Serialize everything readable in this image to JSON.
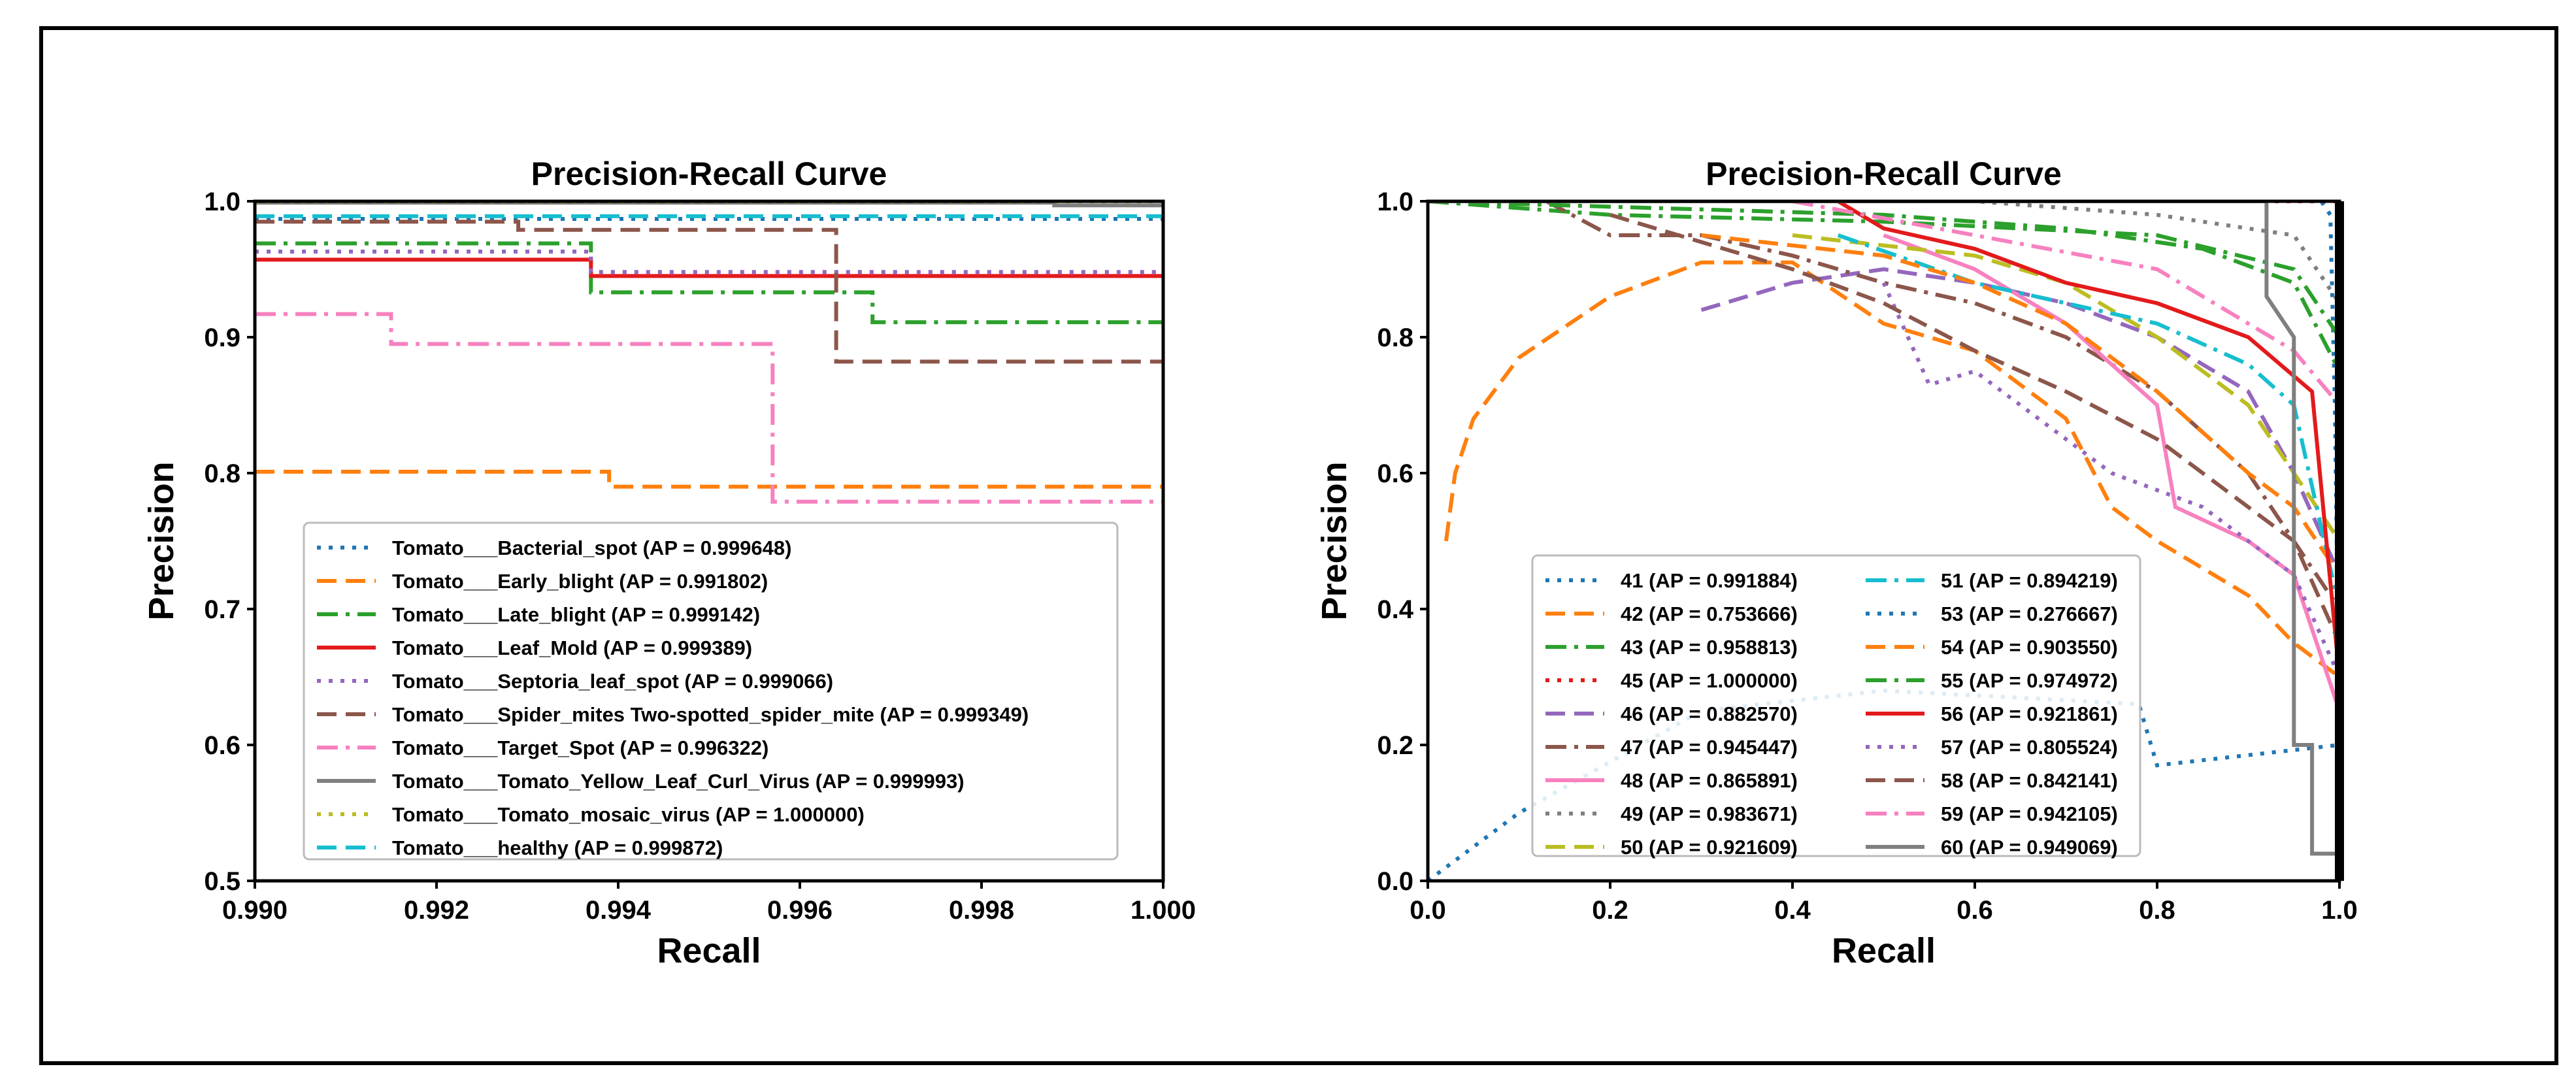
{
  "chart_data": [
    {
      "type": "line",
      "title": "Precision-Recall Curve",
      "xlabel": "Recall",
      "ylabel": "Precision",
      "xlim": [
        0.99,
        1.0
      ],
      "ylim": [
        0.5,
        1.0
      ],
      "xticks": [
        "0.990",
        "0.992",
        "0.994",
        "0.996",
        "0.998",
        "1.000"
      ],
      "yticks": [
        "0.5",
        "0.6",
        "0.7",
        "0.8",
        "0.9",
        "1.0"
      ],
      "legend_position": "lower-left",
      "series": [
        {
          "name": "Tomato___Bacterial_spot (AP = 0.999648)",
          "color": "#1f77b4",
          "style": "dotted",
          "points": [
            [
              0.99,
              0.987
            ],
            [
              1.0,
              0.987
            ]
          ]
        },
        {
          "name": "Tomato___Early_blight (AP = 0.991802)",
          "color": "#ff7f0e",
          "style": "dashed",
          "points": [
            [
              0.99,
              0.801
            ],
            [
              0.9939,
              0.801
            ],
            [
              0.9939,
              0.79
            ],
            [
              1.0,
              0.79
            ]
          ]
        },
        {
          "name": "Tomato___Late_blight (AP = 0.999142)",
          "color": "#2ca02c",
          "style": "dashdot",
          "points": [
            [
              0.99,
              0.969
            ],
            [
              0.9937,
              0.969
            ],
            [
              0.9937,
              0.933
            ],
            [
              0.9968,
              0.933
            ],
            [
              0.9968,
              0.911
            ],
            [
              1.0,
              0.911
            ]
          ]
        },
        {
          "name": "Tomato___Leaf_Mold (AP = 0.999389)",
          "color": "#e31a1c",
          "style": "solid",
          "points": [
            [
              0.99,
              0.957
            ],
            [
              0.9937,
              0.957
            ],
            [
              0.9937,
              0.945
            ],
            [
              1.0,
              0.945
            ]
          ]
        },
        {
          "name": "Tomato___Septoria_leaf_spot (AP = 0.999066)",
          "color": "#9467bd",
          "style": "dotted",
          "points": [
            [
              0.99,
              0.963
            ],
            [
              0.9937,
              0.963
            ],
            [
              0.9937,
              0.948
            ],
            [
              1.0,
              0.948
            ]
          ]
        },
        {
          "name": "Tomato___Spider_mites Two-spotted_spider_mite (AP = 0.999349)",
          "color": "#8c564b",
          "style": "dashed",
          "points": [
            [
              0.99,
              0.985
            ],
            [
              0.9929,
              0.985
            ],
            [
              0.9929,
              0.979
            ],
            [
              0.9964,
              0.979
            ],
            [
              0.9964,
              0.882
            ],
            [
              1.0,
              0.882
            ]
          ]
        },
        {
          "name": "Tomato___Target_Spot (AP = 0.996322)",
          "color": "#f781bf",
          "style": "dashdot",
          "points": [
            [
              0.99,
              0.917
            ],
            [
              0.9915,
              0.917
            ],
            [
              0.9915,
              0.895
            ],
            [
              0.9957,
              0.895
            ],
            [
              0.9957,
              0.779
            ],
            [
              1.0,
              0.779
            ]
          ]
        },
        {
          "name": "Tomato___Tomato_Yellow_Leaf_Curl_Virus (AP = 0.999993)",
          "color": "#7f7f7f",
          "style": "solid",
          "points": [
            [
              0.99,
              0.999
            ],
            [
              0.9988,
              0.999
            ],
            [
              0.9988,
              0.997
            ],
            [
              1.0,
              0.997
            ]
          ]
        },
        {
          "name": "Tomato___Tomato_mosaic_virus (AP = 1.000000)",
          "color": "#bcbd22",
          "style": "dotted",
          "points": [
            [
              0.99,
              1.0
            ],
            [
              1.0,
              1.0
            ]
          ]
        },
        {
          "name": "Tomato___healthy (AP = 0.999872)",
          "color": "#17becf",
          "style": "dashed",
          "points": [
            [
              0.99,
              0.989
            ],
            [
              1.0,
              0.989
            ]
          ]
        }
      ]
    },
    {
      "type": "line",
      "title": "Precision-Recall Curve",
      "xlabel": "Recall",
      "ylabel": "Precision",
      "xlim": [
        0.0,
        1.0
      ],
      "ylim": [
        0.0,
        1.0
      ],
      "xticks": [
        "0.0",
        "0.2",
        "0.4",
        "0.6",
        "0.8",
        "1.0"
      ],
      "yticks": [
        "0.0",
        "0.2",
        "0.4",
        "0.6",
        "0.8",
        "1.0"
      ],
      "legend_position": "lower-center",
      "legend_columns": 2,
      "series": [
        {
          "name": "41 (AP = 0.991884)",
          "color": "#1f77b4",
          "style": "dotted",
          "points": [
            [
              0.0,
              1.0
            ],
            [
              0.98,
              1.0
            ],
            [
              0.99,
              0.98
            ],
            [
              0.995,
              0.7
            ],
            [
              1.0,
              0.2
            ]
          ]
        },
        {
          "name": "42 (AP = 0.753666)",
          "color": "#ff7f0e",
          "style": "dashed",
          "points": [
            [
              0.02,
              0.5
            ],
            [
              0.03,
              0.6
            ],
            [
              0.05,
              0.68
            ],
            [
              0.1,
              0.77
            ],
            [
              0.2,
              0.86
            ],
            [
              0.3,
              0.91
            ],
            [
              0.4,
              0.91
            ],
            [
              0.5,
              0.82
            ],
            [
              0.6,
              0.78
            ],
            [
              0.7,
              0.68
            ],
            [
              0.75,
              0.55
            ],
            [
              0.8,
              0.5
            ],
            [
              0.9,
              0.42
            ],
            [
              0.95,
              0.35
            ],
            [
              1.0,
              0.3
            ]
          ]
        },
        {
          "name": "43 (AP = 0.958813)",
          "color": "#2ca02c",
          "style": "dashdot",
          "points": [
            [
              0.0,
              1.0
            ],
            [
              0.2,
              0.98
            ],
            [
              0.5,
              0.97
            ],
            [
              0.8,
              0.95
            ],
            [
              0.95,
              0.9
            ],
            [
              1.0,
              0.8
            ]
          ]
        },
        {
          "name": "45 (AP = 1.000000)",
          "color": "#e31a1c",
          "style": "dotted",
          "points": [
            [
              0.0,
              1.0
            ],
            [
              1.0,
              1.0
            ]
          ]
        },
        {
          "name": "46 (AP = 0.882570)",
          "color": "#9467bd",
          "style": "dashed",
          "points": [
            [
              0.3,
              0.84
            ],
            [
              0.4,
              0.88
            ],
            [
              0.5,
              0.9
            ],
            [
              0.6,
              0.88
            ],
            [
              0.7,
              0.85
            ],
            [
              0.8,
              0.8
            ],
            [
              0.9,
              0.72
            ],
            [
              0.95,
              0.6
            ],
            [
              1.0,
              0.45
            ]
          ]
        },
        {
          "name": "47 (AP = 0.945447)",
          "color": "#8c564b",
          "style": "dashdot",
          "points": [
            [
              0.13,
              1.0
            ],
            [
              0.2,
              0.95
            ],
            [
              0.3,
              0.95
            ],
            [
              0.4,
              0.92
            ],
            [
              0.5,
              0.88
            ],
            [
              0.6,
              0.85
            ],
            [
              0.7,
              0.8
            ],
            [
              0.8,
              0.72
            ],
            [
              0.9,
              0.6
            ],
            [
              1.0,
              0.4
            ]
          ]
        },
        {
          "name": "48 (AP = 0.865891)",
          "color": "#f781bf",
          "style": "solid",
          "points": [
            [
              0.5,
              0.95
            ],
            [
              0.6,
              0.9
            ],
            [
              0.7,
              0.82
            ],
            [
              0.8,
              0.7
            ],
            [
              0.82,
              0.55
            ],
            [
              0.9,
              0.5
            ],
            [
              0.95,
              0.45
            ],
            [
              1.0,
              0.25
            ]
          ]
        },
        {
          "name": "49 (AP = 0.983671)",
          "color": "#7f7f7f",
          "style": "dotted",
          "points": [
            [
              0.0,
              1.0
            ],
            [
              0.6,
              1.0
            ],
            [
              0.8,
              0.98
            ],
            [
              0.95,
              0.95
            ],
            [
              1.0,
              0.85
            ]
          ]
        },
        {
          "name": "50 (AP = 0.921609)",
          "color": "#bcbd22",
          "style": "dashed",
          "points": [
            [
              0.4,
              0.95
            ],
            [
              0.6,
              0.92
            ],
            [
              0.7,
              0.88
            ],
            [
              0.8,
              0.8
            ],
            [
              0.9,
              0.7
            ],
            [
              0.95,
              0.6
            ],
            [
              1.0,
              0.5
            ]
          ]
        },
        {
          "name": "51 (AP = 0.894219)",
          "color": "#17becf",
          "style": "dashdot",
          "points": [
            [
              0.45,
              0.95
            ],
            [
              0.6,
              0.88
            ],
            [
              0.7,
              0.85
            ],
            [
              0.8,
              0.82
            ],
            [
              0.9,
              0.76
            ],
            [
              0.95,
              0.7
            ],
            [
              1.0,
              0.4
            ]
          ]
        },
        {
          "name": "53 (AP = 0.276667)",
          "color": "#1f77b4",
          "style": "dotted",
          "points": [
            [
              0.0,
              0.0
            ],
            [
              0.1,
              0.1
            ],
            [
              0.3,
              0.25
            ],
            [
              0.5,
              0.28
            ],
            [
              0.78,
              0.26
            ],
            [
              0.8,
              0.17
            ],
            [
              1.0,
              0.2
            ]
          ]
        },
        {
          "name": "54 (AP = 0.903550)",
          "color": "#ff7f0e",
          "style": "dashed",
          "points": [
            [
              0.3,
              0.95
            ],
            [
              0.5,
              0.92
            ],
            [
              0.6,
              0.88
            ],
            [
              0.7,
              0.82
            ],
            [
              0.8,
              0.72
            ],
            [
              0.9,
              0.6
            ],
            [
              0.95,
              0.55
            ],
            [
              1.0,
              0.45
            ]
          ]
        },
        {
          "name": "55 (AP = 0.974972)",
          "color": "#2ca02c",
          "style": "dashdot",
          "points": [
            [
              0.0,
              1.0
            ],
            [
              0.5,
              0.98
            ],
            [
              0.7,
              0.96
            ],
            [
              0.85,
              0.93
            ],
            [
              0.95,
              0.88
            ],
            [
              1.0,
              0.75
            ]
          ]
        },
        {
          "name": "56 (AP = 0.921861)",
          "color": "#e31a1c",
          "style": "solid",
          "points": [
            [
              0.45,
              1.0
            ],
            [
              0.5,
              0.96
            ],
            [
              0.6,
              0.93
            ],
            [
              0.7,
              0.88
            ],
            [
              0.8,
              0.85
            ],
            [
              0.9,
              0.8
            ],
            [
              0.97,
              0.72
            ],
            [
              1.0,
              0.3
            ]
          ]
        },
        {
          "name": "57 (AP = 0.805524)",
          "color": "#9467bd",
          "style": "dotted",
          "points": [
            [
              0.5,
              0.88
            ],
            [
              0.55,
              0.73
            ],
            [
              0.6,
              0.75
            ],
            [
              0.7,
              0.65
            ],
            [
              0.75,
              0.6
            ],
            [
              0.85,
              0.55
            ],
            [
              0.95,
              0.45
            ],
            [
              1.0,
              0.3
            ]
          ]
        },
        {
          "name": "58 (AP = 0.842141)",
          "color": "#8c564b",
          "style": "dashed",
          "points": [
            [
              0.2,
              0.98
            ],
            [
              0.4,
              0.9
            ],
            [
              0.5,
              0.85
            ],
            [
              0.6,
              0.78
            ],
            [
              0.7,
              0.72
            ],
            [
              0.8,
              0.65
            ],
            [
              0.9,
              0.55
            ],
            [
              0.95,
              0.5
            ],
            [
              1.0,
              0.35
            ]
          ]
        },
        {
          "name": "59 (AP = 0.942105)",
          "color": "#f781bf",
          "style": "dashdot",
          "points": [
            [
              0.4,
              1.0
            ],
            [
              0.6,
              0.95
            ],
            [
              0.8,
              0.9
            ],
            [
              0.9,
              0.82
            ],
            [
              0.95,
              0.78
            ],
            [
              1.0,
              0.7
            ]
          ]
        },
        {
          "name": "60 (AP = 0.949069)",
          "color": "#7f7f7f",
          "style": "solid",
          "points": [
            [
              0.0,
              1.0
            ],
            [
              0.92,
              1.0
            ],
            [
              0.92,
              0.86
            ],
            [
              0.95,
              0.8
            ],
            [
              0.95,
              0.2
            ],
            [
              0.97,
              0.2
            ],
            [
              0.97,
              0.04
            ],
            [
              1.0,
              0.04
            ]
          ]
        }
      ]
    }
  ]
}
